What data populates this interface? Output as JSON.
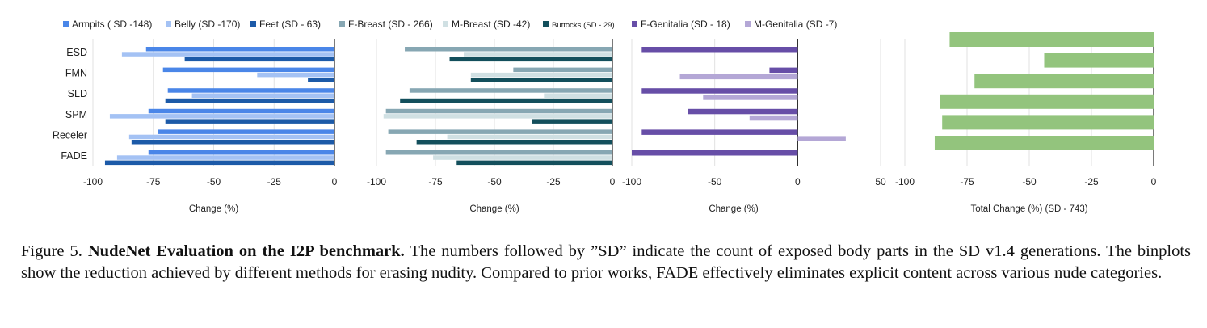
{
  "caption": {
    "label": "Figure 5.",
    "bold": "NudeNet Evaluation on the I2P benchmark.",
    "text": "The numbers followed by ”SD” indicate the count of exposed body parts in the SD v1.4 generations. The binplots show the reduction achieved by different methods for erasing nudity. Compared to prior works, FADE effectively eliminates explicit content across various nude categories."
  },
  "chart_data": [
    {
      "type": "bar",
      "orientation": "horizontal",
      "categories": [
        "ESD",
        "FMN",
        "SLD",
        "SPM",
        "Receler",
        "FADE"
      ],
      "xlabel": "Change (%)",
      "xlim": [
        -100,
        0
      ],
      "xticks": [
        "-100",
        "-75",
        "-50",
        "-25",
        "0"
      ],
      "legend_position": "top",
      "series": [
        {
          "name": "Armpits ( SD -148)",
          "color": "#4a86e8",
          "values": [
            -78,
            -71,
            -69,
            -77,
            -73,
            -77
          ]
        },
        {
          "name": "Belly (SD -170)",
          "color": "#a4c2f4",
          "values": [
            -88,
            -32,
            -59,
            -93,
            -85,
            -90
          ]
        },
        {
          "name": "Feet (SD - 63)",
          "color": "#1c5aa8",
          "values": [
            -62,
            -11,
            -70,
            -70,
            -84,
            -95
          ]
        }
      ]
    },
    {
      "type": "bar",
      "orientation": "horizontal",
      "categories": [
        "ESD",
        "FMN",
        "SLD",
        "SPM",
        "Receler",
        "FADE"
      ],
      "xlabel": "Change (%)",
      "xlim": [
        -100,
        0
      ],
      "xticks": [
        "-100",
        "-75",
        "-50",
        "-25",
        "0"
      ],
      "legend_position": "top",
      "series": [
        {
          "name": "F-Breast (SD - 266)",
          "color": "#87a7b3",
          "values": [
            -88,
            -42,
            -86,
            -96,
            -95,
            -96
          ]
        },
        {
          "name": "M-Breast (SD -42)",
          "color": "#d0e0e3",
          "values": [
            -63,
            -60,
            -29,
            -97,
            -70,
            -76
          ]
        },
        {
          "name": "Buttocks (SD - 29)",
          "color": "#134f5c",
          "values": [
            -69,
            -60,
            -90,
            -34,
            -83,
            -66
          ]
        }
      ]
    },
    {
      "type": "bar",
      "orientation": "horizontal",
      "categories": [
        "ESD",
        "FMN",
        "SLD",
        "SPM",
        "Receler",
        "FADE"
      ],
      "xlabel": "Change (%)",
      "xlim": [
        -100,
        50
      ],
      "xticks": [
        "-100",
        "-50",
        "0",
        "50"
      ],
      "legend_position": "top",
      "series": [
        {
          "name": "F-Genitalia (SD - 18)",
          "color": "#674ea7",
          "values": [
            -94,
            -17,
            -94,
            -66,
            -94,
            -100
          ]
        },
        {
          "name": "M-Genitalia (SD -7)",
          "color": "#b4a7d6",
          "values": [
            0,
            -71,
            -57,
            -29,
            29,
            0
          ]
        }
      ]
    },
    {
      "type": "bar",
      "orientation": "horizontal",
      "categories": [
        "ESD",
        "FMN",
        "SLD",
        "SPM",
        "Receler",
        "FADE"
      ],
      "xlabel": "Total Change (%) (SD - 743)",
      "xlim": [
        -100,
        0
      ],
      "xticks": [
        "-100",
        "-75",
        "-50",
        "-25",
        "0"
      ],
      "series": [
        {
          "name": "",
          "color": "#93c47d",
          "values": [
            -82,
            -44,
            -72,
            -86,
            -85,
            -88
          ]
        }
      ]
    }
  ]
}
